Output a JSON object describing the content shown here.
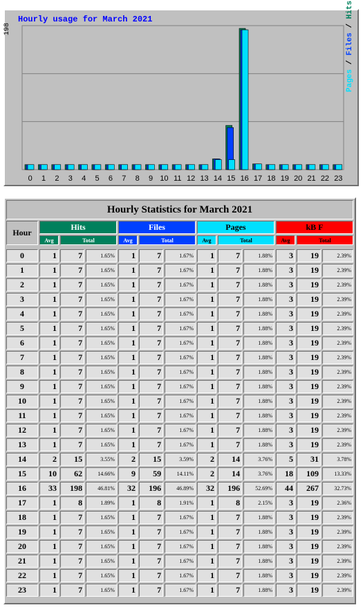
{
  "chart": {
    "title": "Hourly usage for March 2021",
    "ymax_label": "198",
    "legend": {
      "pages": "Pages",
      "files": "Files",
      "hits": "Hits",
      "sep": " / "
    },
    "colors": {
      "hits": "#00805c",
      "files": "#0040ff",
      "pages": "#00e0ff",
      "frame": "#c0c0c0"
    }
  },
  "chart_data": {
    "type": "bar",
    "title": "Hourly usage for March 2021",
    "categories": [
      "0",
      "1",
      "2",
      "3",
      "4",
      "5",
      "6",
      "7",
      "8",
      "9",
      "10",
      "11",
      "12",
      "13",
      "14",
      "15",
      "16",
      "17",
      "18",
      "19",
      "20",
      "21",
      "22",
      "23"
    ],
    "ylim": [
      0,
      198
    ],
    "series": [
      {
        "name": "Hits",
        "values": [
          7,
          7,
          7,
          7,
          7,
          7,
          7,
          7,
          7,
          7,
          7,
          7,
          7,
          7,
          15,
          62,
          198,
          8,
          7,
          7,
          7,
          7,
          7,
          7
        ]
      },
      {
        "name": "Files",
        "values": [
          7,
          7,
          7,
          7,
          7,
          7,
          7,
          7,
          7,
          7,
          7,
          7,
          7,
          7,
          15,
          59,
          196,
          8,
          7,
          7,
          7,
          7,
          7,
          7
        ]
      },
      {
        "name": "Pages",
        "values": [
          7,
          7,
          7,
          7,
          7,
          7,
          7,
          7,
          7,
          7,
          7,
          7,
          7,
          7,
          14,
          14,
          196,
          8,
          7,
          7,
          7,
          7,
          7,
          7
        ]
      }
    ]
  },
  "table": {
    "caption": "Hourly Statistics for March 2021",
    "hour_label": "Hour",
    "groups": {
      "hits": "Hits",
      "files": "Files",
      "pages": "Pages",
      "kbf": "kB F"
    },
    "avg_label": "Avg",
    "total_label": "Total",
    "rows": [
      {
        "hour": "0",
        "h_avg": "1",
        "h_tot": "7",
        "h_pct": "1.65%",
        "f_avg": "1",
        "f_tot": "7",
        "f_pct": "1.67%",
        "p_avg": "1",
        "p_tot": "7",
        "p_pct": "1.88%",
        "k_avg": "3",
        "k_tot": "19",
        "k_pct": "2.39%"
      },
      {
        "hour": "1",
        "h_avg": "1",
        "h_tot": "7",
        "h_pct": "1.65%",
        "f_avg": "1",
        "f_tot": "7",
        "f_pct": "1.67%",
        "p_avg": "1",
        "p_tot": "7",
        "p_pct": "1.88%",
        "k_avg": "3",
        "k_tot": "19",
        "k_pct": "2.39%"
      },
      {
        "hour": "2",
        "h_avg": "1",
        "h_tot": "7",
        "h_pct": "1.65%",
        "f_avg": "1",
        "f_tot": "7",
        "f_pct": "1.67%",
        "p_avg": "1",
        "p_tot": "7",
        "p_pct": "1.88%",
        "k_avg": "3",
        "k_tot": "19",
        "k_pct": "2.39%"
      },
      {
        "hour": "3",
        "h_avg": "1",
        "h_tot": "7",
        "h_pct": "1.65%",
        "f_avg": "1",
        "f_tot": "7",
        "f_pct": "1.67%",
        "p_avg": "1",
        "p_tot": "7",
        "p_pct": "1.88%",
        "k_avg": "3",
        "k_tot": "19",
        "k_pct": "2.39%"
      },
      {
        "hour": "4",
        "h_avg": "1",
        "h_tot": "7",
        "h_pct": "1.65%",
        "f_avg": "1",
        "f_tot": "7",
        "f_pct": "1.67%",
        "p_avg": "1",
        "p_tot": "7",
        "p_pct": "1.88%",
        "k_avg": "3",
        "k_tot": "19",
        "k_pct": "2.39%"
      },
      {
        "hour": "5",
        "h_avg": "1",
        "h_tot": "7",
        "h_pct": "1.65%",
        "f_avg": "1",
        "f_tot": "7",
        "f_pct": "1.67%",
        "p_avg": "1",
        "p_tot": "7",
        "p_pct": "1.88%",
        "k_avg": "3",
        "k_tot": "19",
        "k_pct": "2.39%"
      },
      {
        "hour": "6",
        "h_avg": "1",
        "h_tot": "7",
        "h_pct": "1.65%",
        "f_avg": "1",
        "f_tot": "7",
        "f_pct": "1.67%",
        "p_avg": "1",
        "p_tot": "7",
        "p_pct": "1.88%",
        "k_avg": "3",
        "k_tot": "19",
        "k_pct": "2.39%"
      },
      {
        "hour": "7",
        "h_avg": "1",
        "h_tot": "7",
        "h_pct": "1.65%",
        "f_avg": "1",
        "f_tot": "7",
        "f_pct": "1.67%",
        "p_avg": "1",
        "p_tot": "7",
        "p_pct": "1.88%",
        "k_avg": "3",
        "k_tot": "19",
        "k_pct": "2.39%"
      },
      {
        "hour": "8",
        "h_avg": "1",
        "h_tot": "7",
        "h_pct": "1.65%",
        "f_avg": "1",
        "f_tot": "7",
        "f_pct": "1.67%",
        "p_avg": "1",
        "p_tot": "7",
        "p_pct": "1.88%",
        "k_avg": "3",
        "k_tot": "19",
        "k_pct": "2.39%"
      },
      {
        "hour": "9",
        "h_avg": "1",
        "h_tot": "7",
        "h_pct": "1.65%",
        "f_avg": "1",
        "f_tot": "7",
        "f_pct": "1.67%",
        "p_avg": "1",
        "p_tot": "7",
        "p_pct": "1.88%",
        "k_avg": "3",
        "k_tot": "19",
        "k_pct": "2.39%"
      },
      {
        "hour": "10",
        "h_avg": "1",
        "h_tot": "7",
        "h_pct": "1.65%",
        "f_avg": "1",
        "f_tot": "7",
        "f_pct": "1.67%",
        "p_avg": "1",
        "p_tot": "7",
        "p_pct": "1.88%",
        "k_avg": "3",
        "k_tot": "19",
        "k_pct": "2.39%"
      },
      {
        "hour": "11",
        "h_avg": "1",
        "h_tot": "7",
        "h_pct": "1.65%",
        "f_avg": "1",
        "f_tot": "7",
        "f_pct": "1.67%",
        "p_avg": "1",
        "p_tot": "7",
        "p_pct": "1.88%",
        "k_avg": "3",
        "k_tot": "19",
        "k_pct": "2.39%"
      },
      {
        "hour": "12",
        "h_avg": "1",
        "h_tot": "7",
        "h_pct": "1.65%",
        "f_avg": "1",
        "f_tot": "7",
        "f_pct": "1.67%",
        "p_avg": "1",
        "p_tot": "7",
        "p_pct": "1.88%",
        "k_avg": "3",
        "k_tot": "19",
        "k_pct": "2.39%"
      },
      {
        "hour": "13",
        "h_avg": "1",
        "h_tot": "7",
        "h_pct": "1.65%",
        "f_avg": "1",
        "f_tot": "7",
        "f_pct": "1.67%",
        "p_avg": "1",
        "p_tot": "7",
        "p_pct": "1.88%",
        "k_avg": "3",
        "k_tot": "19",
        "k_pct": "2.39%"
      },
      {
        "hour": "14",
        "h_avg": "2",
        "h_tot": "15",
        "h_pct": "3.55%",
        "f_avg": "2",
        "f_tot": "15",
        "f_pct": "3.59%",
        "p_avg": "2",
        "p_tot": "14",
        "p_pct": "3.76%",
        "k_avg": "5",
        "k_tot": "31",
        "k_pct": "3.78%"
      },
      {
        "hour": "15",
        "h_avg": "10",
        "h_tot": "62",
        "h_pct": "14.66%",
        "f_avg": "9",
        "f_tot": "59",
        "f_pct": "14.11%",
        "p_avg": "2",
        "p_tot": "14",
        "p_pct": "3.76%",
        "k_avg": "18",
        "k_tot": "109",
        "k_pct": "13.33%"
      },
      {
        "hour": "16",
        "h_avg": "33",
        "h_tot": "198",
        "h_pct": "46.81%",
        "f_avg": "32",
        "f_tot": "196",
        "f_pct": "46.89%",
        "p_avg": "32",
        "p_tot": "196",
        "p_pct": "52.69%",
        "k_avg": "44",
        "k_tot": "267",
        "k_pct": "32.73%"
      },
      {
        "hour": "17",
        "h_avg": "1",
        "h_tot": "8",
        "h_pct": "1.89%",
        "f_avg": "1",
        "f_tot": "8",
        "f_pct": "1.91%",
        "p_avg": "1",
        "p_tot": "8",
        "p_pct": "2.15%",
        "k_avg": "3",
        "k_tot": "19",
        "k_pct": "2.36%"
      },
      {
        "hour": "18",
        "h_avg": "1",
        "h_tot": "7",
        "h_pct": "1.65%",
        "f_avg": "1",
        "f_tot": "7",
        "f_pct": "1.67%",
        "p_avg": "1",
        "p_tot": "7",
        "p_pct": "1.88%",
        "k_avg": "3",
        "k_tot": "19",
        "k_pct": "2.39%"
      },
      {
        "hour": "19",
        "h_avg": "1",
        "h_tot": "7",
        "h_pct": "1.65%",
        "f_avg": "1",
        "f_tot": "7",
        "f_pct": "1.67%",
        "p_avg": "1",
        "p_tot": "7",
        "p_pct": "1.88%",
        "k_avg": "3",
        "k_tot": "19",
        "k_pct": "2.39%"
      },
      {
        "hour": "20",
        "h_avg": "1",
        "h_tot": "7",
        "h_pct": "1.65%",
        "f_avg": "1",
        "f_tot": "7",
        "f_pct": "1.67%",
        "p_avg": "1",
        "p_tot": "7",
        "p_pct": "1.88%",
        "k_avg": "3",
        "k_tot": "19",
        "k_pct": "2.39%"
      },
      {
        "hour": "21",
        "h_avg": "1",
        "h_tot": "7",
        "h_pct": "1.65%",
        "f_avg": "1",
        "f_tot": "7",
        "f_pct": "1.67%",
        "p_avg": "1",
        "p_tot": "7",
        "p_pct": "1.88%",
        "k_avg": "3",
        "k_tot": "19",
        "k_pct": "2.39%"
      },
      {
        "hour": "22",
        "h_avg": "1",
        "h_tot": "7",
        "h_pct": "1.65%",
        "f_avg": "1",
        "f_tot": "7",
        "f_pct": "1.67%",
        "p_avg": "1",
        "p_tot": "7",
        "p_pct": "1.88%",
        "k_avg": "3",
        "k_tot": "19",
        "k_pct": "2.39%"
      },
      {
        "hour": "23",
        "h_avg": "1",
        "h_tot": "7",
        "h_pct": "1.65%",
        "f_avg": "1",
        "f_tot": "7",
        "f_pct": "1.67%",
        "p_avg": "1",
        "p_tot": "7",
        "p_pct": "1.88%",
        "k_avg": "3",
        "k_tot": "19",
        "k_pct": "2.39%"
      }
    ]
  }
}
